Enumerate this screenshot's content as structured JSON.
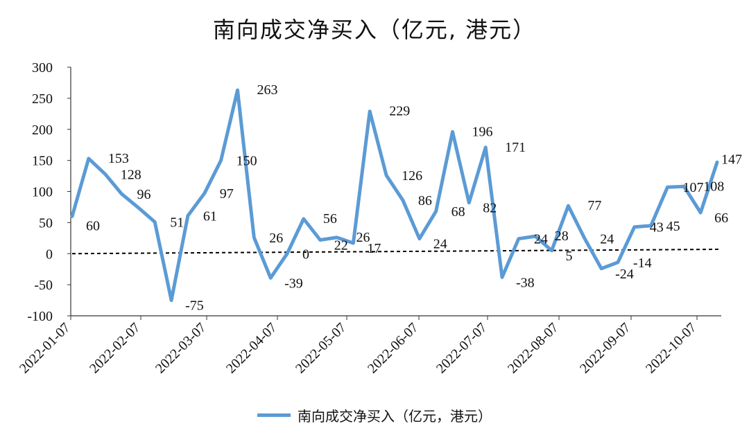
{
  "chart_data": {
    "type": "line",
    "title": "南向成交净买入（亿元, 港元）",
    "legend": "南向成交净买入（亿元，港元）",
    "legend_position": "bottom",
    "line_color": "#5B9BD5",
    "ylim": [
      -100,
      300
    ],
    "yticks": [
      "300",
      "250",
      "200",
      "150",
      "100",
      "50",
      "0",
      "-50",
      "-100"
    ],
    "ytick_values": [
      300,
      250,
      200,
      150,
      100,
      50,
      0,
      -50,
      -100
    ],
    "xticks": [
      "2022-01-07",
      "2022-02-07",
      "2022-03-07",
      "2022-04-07",
      "2022-05-07",
      "2022-06-07",
      "2022-07-07",
      "2022-08-07",
      "2022-09-07",
      "2022-10-07"
    ],
    "values": [
      60,
      153,
      128,
      96,
      74,
      51,
      -75,
      61,
      97,
      150,
      263,
      26,
      -39,
      0,
      56,
      22,
      26,
      17,
      229,
      126,
      86,
      24,
      68,
      196,
      82,
      171,
      -38,
      24,
      28,
      5,
      77,
      24,
      -24,
      -14,
      43,
      45,
      107,
      108,
      66,
      147
    ],
    "data_labels": [
      "60",
      "153",
      "128",
      "96",
      "",
      "51",
      "-75",
      "61",
      "97",
      "150",
      "263",
      "26",
      "-39",
      "0",
      "56",
      "22",
      "26",
      "17",
      "229",
      "126",
      "86",
      "24",
      "68",
      "196",
      "82",
      "171",
      "-38",
      "24",
      "28",
      "5",
      "77",
      "24",
      "-24",
      "-14",
      "43",
      "45",
      "107",
      "108",
      "66",
      "147"
    ],
    "trendline": {
      "style": "dashed",
      "color": "#000000",
      "start": 0,
      "end": 7
    },
    "grid": false
  }
}
